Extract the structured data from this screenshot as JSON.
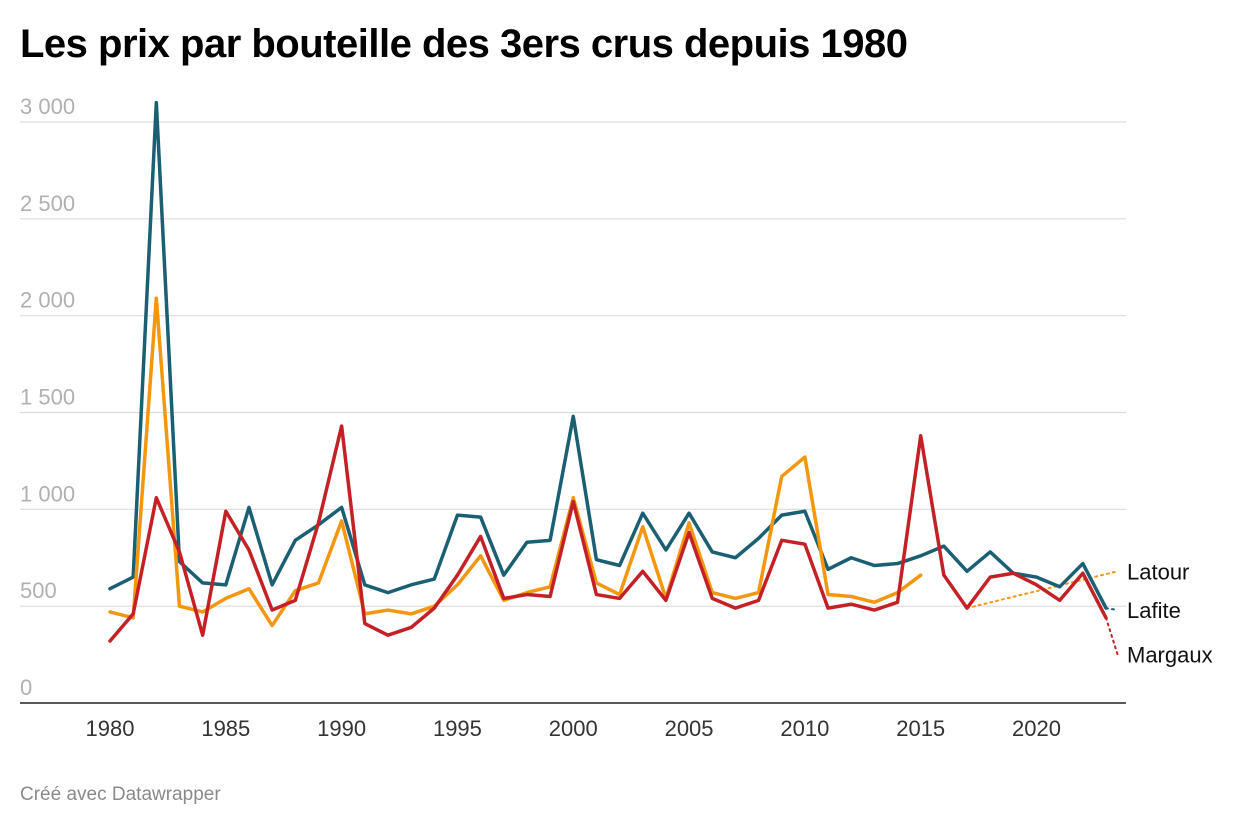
{
  "title": "Les prix par bouteille des 3ers crus depuis 1980",
  "credit": "Créé avec Datawrapper",
  "chart_data": {
    "type": "line",
    "title": "Les prix par bouteille des 3ers crus depuis 1980",
    "xlabel": "",
    "ylabel": "",
    "xlim": [
      1980,
      2023
    ],
    "ylim": [
      0,
      3000
    ],
    "x_ticks": [
      1980,
      1985,
      1990,
      1995,
      2000,
      2005,
      2010,
      2015,
      2020
    ],
    "x_tick_labels": [
      "1980",
      "1985",
      "1990",
      "1995",
      "2000",
      "2005",
      "2010",
      "2015",
      "2020"
    ],
    "y_ticks": [
      0,
      500,
      1000,
      1500,
      2000,
      2500,
      3000
    ],
    "y_tick_labels": [
      "0",
      "500",
      "1 000",
      "1 500",
      "2 000",
      "2 500",
      "3 000"
    ],
    "grid": true,
    "legend": "direct labels at right end of lines",
    "x": [
      1980,
      1981,
      1982,
      1983,
      1984,
      1985,
      1986,
      1987,
      1988,
      1989,
      1990,
      1991,
      1992,
      1993,
      1994,
      1995,
      1996,
      1997,
      1998,
      1999,
      2000,
      2001,
      2002,
      2003,
      2004,
      2005,
      2006,
      2007,
      2008,
      2009,
      2010,
      2011,
      2012,
      2013,
      2014,
      2015,
      2016,
      2017,
      2018,
      2019,
      2020,
      2021,
      2022,
      2023
    ],
    "series": [
      {
        "name": "Lafite",
        "color": "#1b5f73",
        "values": [
          590,
          650,
          3100,
          730,
          620,
          610,
          1010,
          610,
          840,
          920,
          1010,
          610,
          570,
          610,
          640,
          970,
          960,
          660,
          830,
          840,
          1480,
          740,
          710,
          980,
          790,
          980,
          780,
          750,
          850,
          970,
          990,
          690,
          750,
          710,
          720,
          760,
          810,
          680,
          780,
          670,
          650,
          600,
          720,
          490
        ],
        "end_label_value": 480
      },
      {
        "name": "Latour",
        "color": "#f5960f",
        "values": [
          470,
          440,
          2090,
          500,
          470,
          540,
          590,
          400,
          580,
          620,
          940,
          460,
          480,
          460,
          500,
          610,
          760,
          530,
          570,
          600,
          1060,
          620,
          560,
          910,
          540,
          930,
          570,
          540,
          570,
          1170,
          1270,
          560,
          550,
          520,
          570,
          660,
          null,
          490,
          null,
          null,
          null,
          null,
          null,
          null
        ],
        "end_label_value": 680
      },
      {
        "name": "Margaux",
        "color": "#c42127",
        "values": [
          320,
          460,
          1060,
          780,
          350,
          990,
          790,
          480,
          530,
          930,
          1430,
          410,
          350,
          390,
          490,
          660,
          860,
          540,
          560,
          550,
          1040,
          560,
          540,
          680,
          530,
          880,
          540,
          490,
          530,
          840,
          820,
          490,
          510,
          480,
          520,
          1380,
          660,
          490,
          650,
          670,
          610,
          530,
          670,
          440
        ],
        "end_label_value": 250
      }
    ],
    "projections": [
      {
        "series": "Latour",
        "style": "dotted",
        "x": [
          2017,
          2023.5
        ],
        "y": [
          490,
          680
        ]
      },
      {
        "series": "Lafite",
        "style": "dotted",
        "x": [
          2023,
          2023.5
        ],
        "y": [
          490,
          480
        ]
      },
      {
        "series": "Margaux",
        "style": "dotted",
        "x": [
          2023,
          2023.5
        ],
        "y": [
          440,
          250
        ]
      }
    ]
  }
}
